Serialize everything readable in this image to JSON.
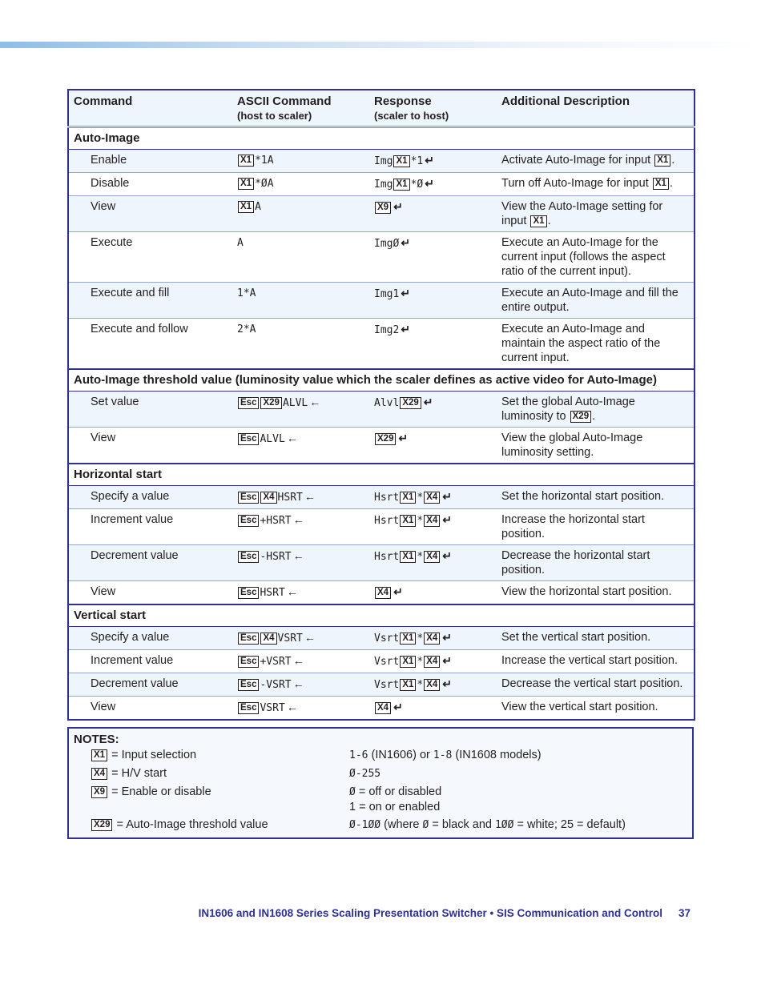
{
  "header_band_color": "#8fbde6",
  "table": {
    "headers": [
      {
        "label": "Command",
        "sub": ""
      },
      {
        "label": "ASCII Command",
        "sub": "(host to scaler)"
      },
      {
        "label": "Response",
        "sub": "(scaler to host)"
      },
      {
        "label": "Additional Description",
        "sub": ""
      }
    ],
    "sections": [
      {
        "title": "Auto-Image",
        "rows": [
          {
            "name": "Enable",
            "cmd": [
              {
                "b": "X1"
              },
              {
                "m": "*1A"
              }
            ],
            "resp": [
              {
                "m": "Img"
              },
              {
                "b": "X1"
              },
              {
                "m": "*1"
              },
              {
                "i": "enter"
              }
            ],
            "desc": [
              "Activate Auto-Image for input ",
              {
                "b": "X1"
              },
              "."
            ]
          },
          {
            "name": "Disable",
            "cmd": [
              {
                "b": "X1"
              },
              {
                "m": "*ØA"
              }
            ],
            "resp": [
              {
                "m": "Img"
              },
              {
                "b": "X1"
              },
              {
                "m": "*Ø"
              },
              {
                "i": "enter"
              }
            ],
            "desc": [
              "Turn off Auto-Image for input ",
              {
                "b": "X1"
              },
              "."
            ]
          },
          {
            "name": "View",
            "cmd": [
              {
                "b": "X1"
              },
              {
                "m": "A"
              }
            ],
            "resp": [
              {
                "b": "X9"
              },
              {
                "i": "enter"
              }
            ],
            "desc": [
              "View the Auto-Image setting for input ",
              {
                "b": "X1"
              },
              "."
            ]
          },
          {
            "name": "Execute",
            "cmd": [
              {
                "m": "A"
              }
            ],
            "resp": [
              {
                "m": "ImgØ"
              },
              {
                "i": "enter"
              }
            ],
            "desc": [
              "Execute an Auto-Image for the current input (follows the aspect ratio of the current input)."
            ]
          },
          {
            "name": "Execute and fill",
            "cmd": [
              {
                "m": "1*A"
              }
            ],
            "resp": [
              {
                "m": "Img1"
              },
              {
                "i": "enter"
              }
            ],
            "desc": [
              "Execute an Auto-Image and fill the entire output."
            ]
          },
          {
            "name": "Execute and follow",
            "cmd": [
              {
                "m": "2*A"
              }
            ],
            "resp": [
              {
                "m": "Img2"
              },
              {
                "i": "enter"
              }
            ],
            "desc": [
              "Execute an Auto-Image and maintain the aspect ratio of the current input."
            ]
          }
        ]
      },
      {
        "title": "Auto-Image threshold value (luminosity value which the scaler defines as active video for Auto-Image)",
        "rows": [
          {
            "name": "Set value",
            "cmd": [
              {
                "b": "Esc"
              },
              {
                "b": "X29"
              },
              {
                "m": "ALVL"
              },
              {
                "i": "left"
              }
            ],
            "resp": [
              {
                "m": "Alvl"
              },
              {
                "b": "X29"
              },
              {
                "i": "enter"
              }
            ],
            "desc": [
              "Set the global Auto-Image luminosity to ",
              {
                "b": "X29"
              },
              "."
            ]
          },
          {
            "name": "View",
            "cmd": [
              {
                "b": "Esc"
              },
              {
                "m": "ALVL"
              },
              {
                "i": "left"
              }
            ],
            "resp": [
              {
                "b": "X29"
              },
              {
                "i": "enter"
              }
            ],
            "desc": [
              "View the global Auto-Image luminosity setting."
            ]
          }
        ]
      },
      {
        "title": "Horizontal start",
        "rows": [
          {
            "name": "Specify a value",
            "cmd": [
              {
                "b": "Esc"
              },
              {
                "b": "X4"
              },
              {
                "m": "HSRT"
              },
              {
                "i": "left"
              }
            ],
            "resp": [
              {
                "m": "Hsrt"
              },
              {
                "b": "X1"
              },
              {
                "m": "*"
              },
              {
                "b": "X4"
              },
              {
                "i": "enter"
              }
            ],
            "desc": [
              "Set the horizontal start position."
            ]
          },
          {
            "name": "Increment value",
            "cmd": [
              {
                "b": "Esc"
              },
              {
                "m": "+HSRT"
              },
              {
                "i": "left"
              }
            ],
            "resp": [
              {
                "m": "Hsrt"
              },
              {
                "b": "X1"
              },
              {
                "m": "*"
              },
              {
                "b": "X4"
              },
              {
                "i": "enter"
              }
            ],
            "desc": [
              "Increase the horizontal start position."
            ]
          },
          {
            "name": "Decrement value",
            "cmd": [
              {
                "b": "Esc"
              },
              {
                "m": "-HSRT"
              },
              {
                "i": "left"
              }
            ],
            "resp": [
              {
                "m": "Hsrt"
              },
              {
                "b": "X1"
              },
              {
                "m": "*"
              },
              {
                "b": "X4"
              },
              {
                "i": "enter"
              }
            ],
            "desc": [
              "Decrease the horizontal start position."
            ]
          },
          {
            "name": "View",
            "cmd": [
              {
                "b": "Esc"
              },
              {
                "m": "HSRT"
              },
              {
                "i": "left"
              }
            ],
            "resp": [
              {
                "b": "X4"
              },
              {
                "i": "enter"
              }
            ],
            "desc": [
              "View the horizontal start position."
            ]
          }
        ]
      },
      {
        "title": "Vertical start",
        "rows": [
          {
            "name": "Specify a value",
            "cmd": [
              {
                "b": "Esc"
              },
              {
                "b": "X4"
              },
              {
                "m": "VSRT"
              },
              {
                "i": "left"
              }
            ],
            "resp": [
              {
                "m": "Vsrt"
              },
              {
                "b": "X1"
              },
              {
                "m": "*"
              },
              {
                "b": "X4"
              },
              {
                "i": "enter"
              }
            ],
            "desc": [
              "Set the vertical start position."
            ]
          },
          {
            "name": "Increment value",
            "cmd": [
              {
                "b": "Esc"
              },
              {
                "m": "+VSRT"
              },
              {
                "i": "left"
              }
            ],
            "resp": [
              {
                "m": "Vsrt"
              },
              {
                "b": "X1"
              },
              {
                "m": "*"
              },
              {
                "b": "X4"
              },
              {
                "i": "enter"
              }
            ],
            "desc": [
              "Increase the vertical start position."
            ]
          },
          {
            "name": "Decrement value",
            "cmd": [
              {
                "b": "Esc"
              },
              {
                "m": "-VSRT"
              },
              {
                "i": "left"
              }
            ],
            "resp": [
              {
                "m": "Vsrt"
              },
              {
                "b": "X1"
              },
              {
                "m": "*"
              },
              {
                "b": "X4"
              },
              {
                "i": "enter"
              }
            ],
            "desc": [
              "Decrease the vertical start position."
            ]
          },
          {
            "name": "View",
            "cmd": [
              {
                "b": "Esc"
              },
              {
                "m": "VSRT"
              },
              {
                "i": "left"
              }
            ],
            "resp": [
              {
                "b": "X4"
              },
              {
                "i": "enter"
              }
            ],
            "desc": [
              "View the vertical start position."
            ]
          }
        ]
      }
    ]
  },
  "notes": {
    "title": "NOTES:",
    "items": [
      {
        "left": [
          {
            "b": "X1"
          },
          " = Input selection"
        ],
        "right": [
          {
            "m": "1-6"
          },
          " (IN1606) or ",
          {
            "m": "1-8"
          },
          " (IN1608 models)"
        ]
      },
      {
        "left": [
          {
            "b": "X4"
          },
          " = H/V start"
        ],
        "right": [
          {
            "m": "Ø-255"
          }
        ]
      },
      {
        "left": [
          {
            "b": "X9"
          },
          " = Enable or disable"
        ],
        "right": [
          {
            "m": "Ø"
          },
          " = off or disabled"
        ],
        "right2": [
          "1 = on or enabled"
        ]
      },
      {
        "left": [
          {
            "b": "X29"
          },
          " = Auto-Image threshold value"
        ],
        "right": [
          {
            "m": "Ø-1ØØ"
          },
          " (where ",
          {
            "m": "Ø"
          },
          " = black and ",
          {
            "m": "1ØØ"
          },
          " = white; 25 = default)"
        ]
      }
    ]
  },
  "footer": {
    "text": "IN1606 and IN1608 Series Scaling Presentation Switcher • SIS Communication and Control",
    "page": "37"
  }
}
